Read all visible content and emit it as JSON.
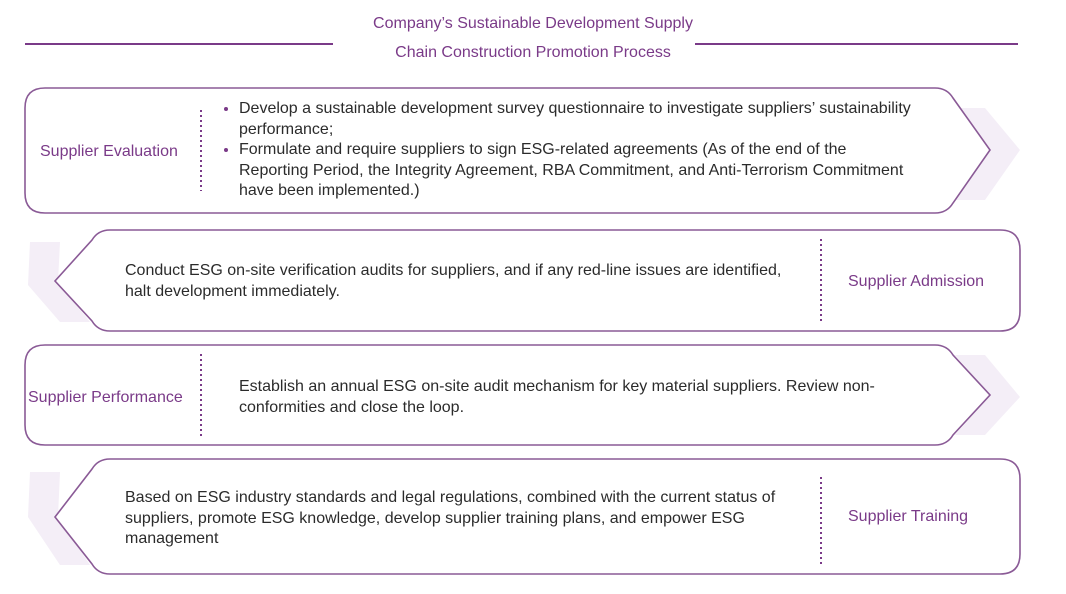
{
  "title": {
    "line1": "Company’s Sustainable Development Supply",
    "line2": "Chain Construction Promotion Process"
  },
  "colors": {
    "accent": "#7a3a88",
    "border": "#8a5a96",
    "shadow": "#f4eef7"
  },
  "steps": [
    {
      "stage": "Supplier Evaluation",
      "direction": "right",
      "bullets": [
        "Develop a sustainable development survey questionnaire to investigate suppliers’ sustainability performance;",
        "Formulate and require suppliers to sign ESG-related agreements (As of the end of the Reporting Period, the Integrity Agreement, RBA Commitment, and Anti-Terrorism Commitment have been implemented.)"
      ]
    },
    {
      "stage": "Supplier Admission",
      "direction": "left",
      "text": "Conduct ESG on-site verification audits for suppliers, and if any red-line issues are identified, halt development immediately."
    },
    {
      "stage": "Supplier Performance",
      "direction": "right",
      "text": "Establish an annual ESG on-site audit mechanism for key material suppliers. Review non-conformities and close the loop."
    },
    {
      "stage": "Supplier Training",
      "direction": "left",
      "text": "Based on ESG industry standards and legal regulations, combined with the current status of suppliers, promote ESG knowledge, develop supplier training plans, and empower ESG management"
    }
  ]
}
